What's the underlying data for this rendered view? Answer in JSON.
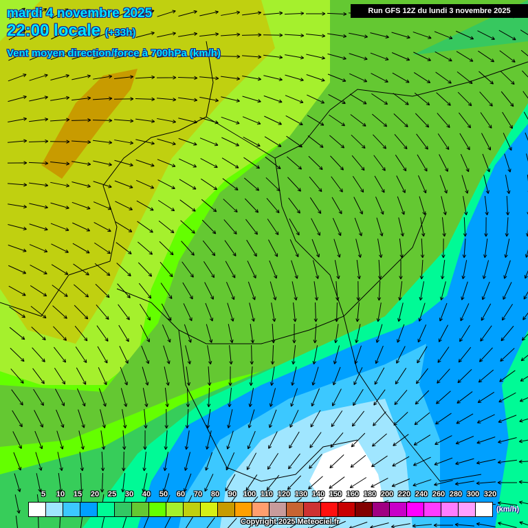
{
  "header": {
    "date": "mardi 4 novembre 2025",
    "time": "22:00 locale",
    "lead": "(+33h)",
    "parameter": "Vent moyen direction/force à 700hPa (km/h)",
    "run": "Run GFS 12Z du lundi 3 novembre 2025"
  },
  "legend": {
    "unit": "(km/h)",
    "labels": [
      "5",
      "10",
      "15",
      "20",
      "25",
      "30",
      "40",
      "50",
      "60",
      "70",
      "80",
      "90",
      "100",
      "110",
      "120",
      "130",
      "140",
      "150",
      "160",
      "180",
      "200",
      "220",
      "240",
      "260",
      "280",
      "300",
      "320"
    ],
    "colors": [
      "#ffffff",
      "#a0e6ff",
      "#3cc8ff",
      "#00a0ff",
      "#00fa96",
      "#32c864",
      "#64c832",
      "#64ff00",
      "#a5f02d",
      "#c0d010",
      "#d7f014",
      "#c89b00",
      "#ffa000",
      "#ff9e6e",
      "#c89b9b",
      "#c86432",
      "#cd3232",
      "#ff0f0f",
      "#c80000",
      "#820000",
      "#a00082",
      "#c800c8",
      "#ff00ff",
      "#ff3cff",
      "#ff7dff",
      "#ffa0ff",
      "#ffffff"
    ]
  },
  "copyright": "Copyright 2025 Meteociel.fr"
}
